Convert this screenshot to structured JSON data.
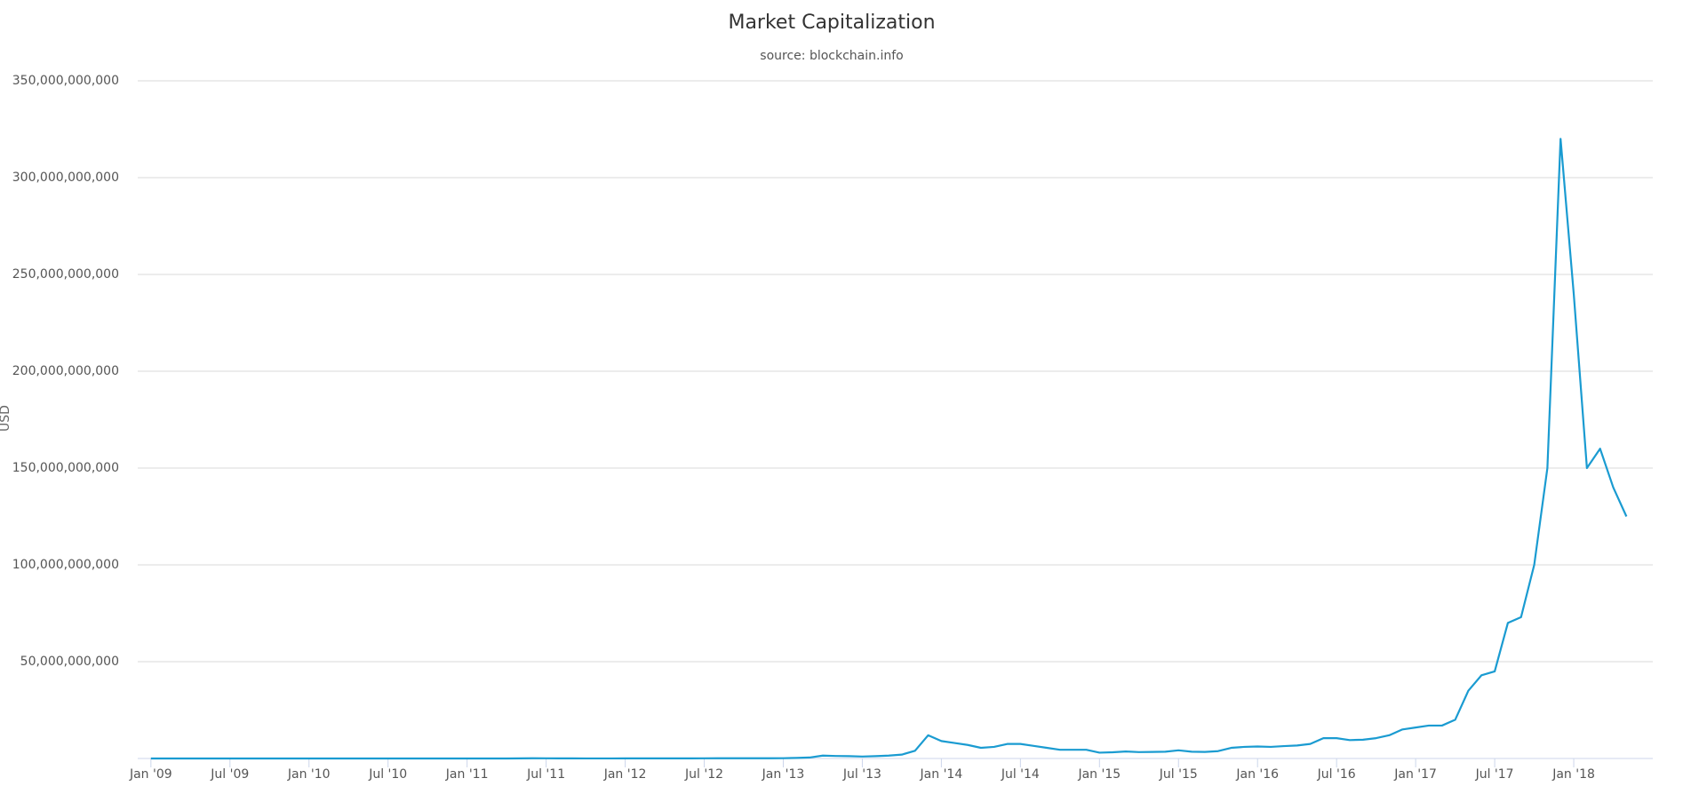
{
  "chart_data": {
    "type": "line",
    "title": "Market Capitalization",
    "subtitle": "source: blockchain.info",
    "y_label": "USD",
    "x": [
      "2009-01",
      "2009-02",
      "2009-03",
      "2009-04",
      "2009-05",
      "2009-06",
      "2009-07",
      "2009-08",
      "2009-09",
      "2009-10",
      "2009-11",
      "2009-12",
      "2010-01",
      "2010-02",
      "2010-03",
      "2010-04",
      "2010-05",
      "2010-06",
      "2010-07",
      "2010-08",
      "2010-09",
      "2010-10",
      "2010-11",
      "2010-12",
      "2011-01",
      "2011-02",
      "2011-03",
      "2011-04",
      "2011-05",
      "2011-06",
      "2011-07",
      "2011-08",
      "2011-09",
      "2011-10",
      "2011-11",
      "2011-12",
      "2012-01",
      "2012-02",
      "2012-03",
      "2012-04",
      "2012-05",
      "2012-06",
      "2012-07",
      "2012-08",
      "2012-09",
      "2012-10",
      "2012-11",
      "2012-12",
      "2013-01",
      "2013-02",
      "2013-03",
      "2013-04",
      "2013-05",
      "2013-06",
      "2013-07",
      "2013-08",
      "2013-09",
      "2013-10",
      "2013-11",
      "2013-12",
      "2014-01",
      "2014-02",
      "2014-03",
      "2014-04",
      "2014-05",
      "2014-06",
      "2014-07",
      "2014-08",
      "2014-09",
      "2014-10",
      "2014-11",
      "2014-12",
      "2015-01",
      "2015-02",
      "2015-03",
      "2015-04",
      "2015-05",
      "2015-06",
      "2015-07",
      "2015-08",
      "2015-09",
      "2015-10",
      "2015-11",
      "2015-12",
      "2016-01",
      "2016-02",
      "2016-03",
      "2016-04",
      "2016-05",
      "2016-06",
      "2016-07",
      "2016-08",
      "2016-09",
      "2016-10",
      "2016-11",
      "2016-12",
      "2017-01",
      "2017-02",
      "2017-03",
      "2017-04",
      "2017-05",
      "2017-06",
      "2017-07",
      "2017-08",
      "2017-09",
      "2017-10",
      "2017-11",
      "2017-12",
      "2018-01",
      "2018-02",
      "2018-03",
      "2018-04",
      "2018-05"
    ],
    "series": [
      {
        "name": "Market Capitalization",
        "color": "#1a9bd1",
        "values": [
          0,
          0,
          0,
          0,
          0,
          0,
          0,
          0,
          0,
          0,
          0,
          0,
          0,
          0,
          0,
          0,
          0,
          0,
          250000,
          250000,
          300000,
          500000,
          1500000,
          1000000,
          2000000,
          5000000,
          5000000,
          6000000,
          40000000,
          100000000,
          90000000,
          70000000,
          40000000,
          30000000,
          25000000,
          30000000,
          60000000,
          50000000,
          45000000,
          45000000,
          50000000,
          60000000,
          80000000,
          100000000,
          115000000,
          110000000,
          120000000,
          130000000,
          150000000,
          300000000,
          500000000,
          1500000000,
          1300000000,
          1200000000,
          1000000000,
          1200000000,
          1500000000,
          2000000000,
          4000000000,
          12000000000,
          9000000000,
          8000000000,
          7000000000,
          5500000000,
          6000000000,
          7500000000,
          7500000000,
          6500000000,
          5500000000,
          4500000000,
          4500000000,
          4500000000,
          3000000000,
          3200000000,
          3600000000,
          3300000000,
          3400000000,
          3500000000,
          4200000000,
          3500000000,
          3400000000,
          3800000000,
          5500000000,
          6000000000,
          6200000000,
          6000000000,
          6400000000,
          6700000000,
          7500000000,
          10500000000,
          10500000000,
          9500000000,
          9700000000,
          10500000000,
          12000000000,
          15000000000,
          16000000000,
          17000000000,
          17000000000,
          20000000000,
          35000000000,
          43000000000,
          45000000000,
          70000000000,
          73000000000,
          100000000000,
          150000000000,
          320000000000,
          240000000000,
          150000000000,
          160000000000,
          140000000000,
          125000000000
        ]
      }
    ],
    "xlim": [
      "2008-12",
      "2018-07"
    ],
    "xticks": [
      {
        "value": "2009-01",
        "label": "Jan '09"
      },
      {
        "value": "2009-07",
        "label": "Jul '09"
      },
      {
        "value": "2010-01",
        "label": "Jan '10"
      },
      {
        "value": "2010-07",
        "label": "Jul '10"
      },
      {
        "value": "2011-01",
        "label": "Jan '11"
      },
      {
        "value": "2011-07",
        "label": "Jul '11"
      },
      {
        "value": "2012-01",
        "label": "Jan '12"
      },
      {
        "value": "2012-07",
        "label": "Jul '12"
      },
      {
        "value": "2013-01",
        "label": "Jan '13"
      },
      {
        "value": "2013-07",
        "label": "Jul '13"
      },
      {
        "value": "2014-01",
        "label": "Jan '14"
      },
      {
        "value": "2014-07",
        "label": "Jul '14"
      },
      {
        "value": "2015-01",
        "label": "Jan '15"
      },
      {
        "value": "2015-07",
        "label": "Jul '15"
      },
      {
        "value": "2016-01",
        "label": "Jan '16"
      },
      {
        "value": "2016-07",
        "label": "Jul '16"
      },
      {
        "value": "2017-01",
        "label": "Jan '17"
      },
      {
        "value": "2017-07",
        "label": "Jul '17"
      },
      {
        "value": "2018-01",
        "label": "Jan '18"
      }
    ],
    "ylim": [
      0,
      350000000000
    ],
    "yticks": [
      {
        "value": 50000000000,
        "label": "50,000,000,000"
      },
      {
        "value": 100000000000,
        "label": "100,000,000,000"
      },
      {
        "value": 150000000000,
        "label": "150,000,000,000"
      },
      {
        "value": 200000000000,
        "label": "200,000,000,000"
      },
      {
        "value": 250000000000,
        "label": "250,000,000,000"
      },
      {
        "value": 300000000000,
        "label": "300,000,000,000"
      },
      {
        "value": 350000000000,
        "label": "350,000,000,000"
      }
    ],
    "grid": true
  }
}
